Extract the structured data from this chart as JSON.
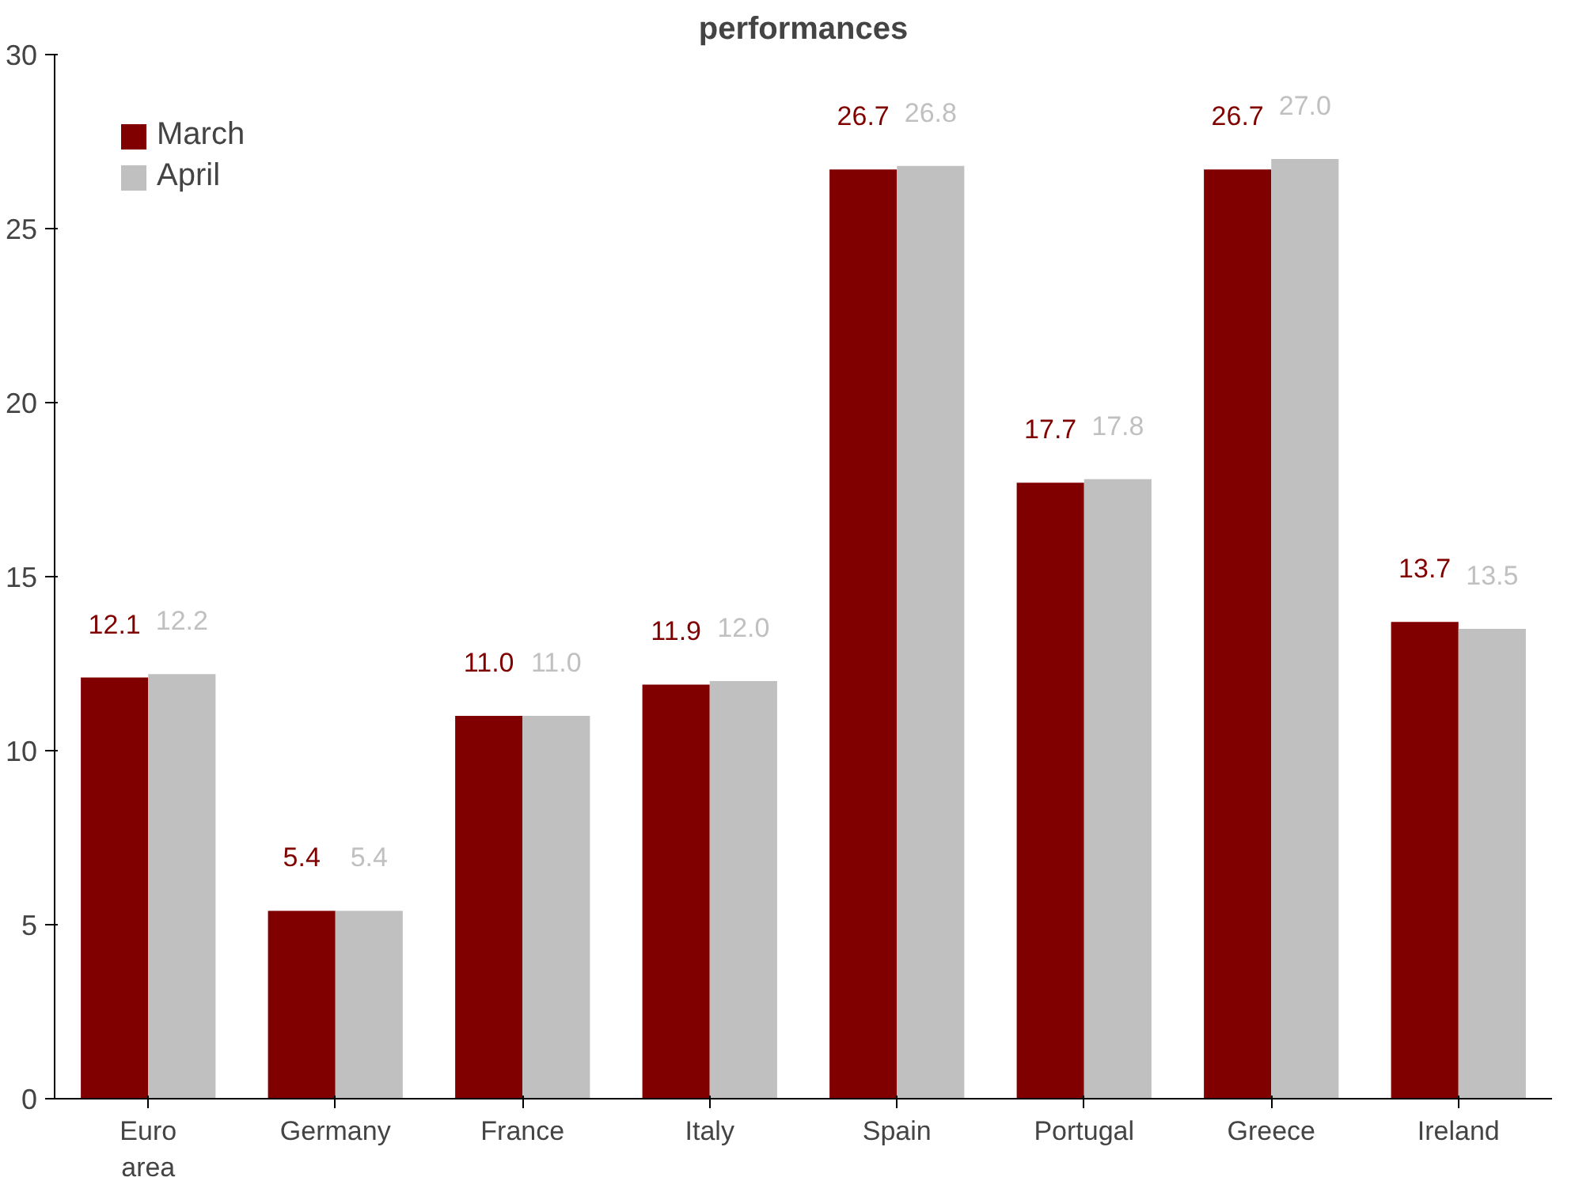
{
  "chart_data": {
    "type": "bar",
    "title": "performances",
    "categories": [
      "Euro area",
      "Germany",
      "France",
      "Italy",
      "Spain",
      "Portugal",
      "Greece",
      "Ireland"
    ],
    "series": [
      {
        "name": "March",
        "color": "#800000",
        "values": [
          12.1,
          5.4,
          11.0,
          11.9,
          26.7,
          17.7,
          26.7,
          13.7
        ],
        "value_labels": [
          "12.1",
          "5.4",
          "11.0",
          "11.9",
          "26.7",
          "17.7",
          "26.7",
          "13.7"
        ]
      },
      {
        "name": "April",
        "color": "#c0c0c0",
        "values": [
          12.2,
          5.4,
          11.0,
          12.0,
          26.8,
          17.8,
          27.0,
          13.5
        ],
        "value_labels": [
          "12.2",
          "5.4",
          "11.0",
          "12.0",
          "26.8",
          "17.8",
          "27.0",
          "13.5"
        ]
      }
    ],
    "ylim": [
      0,
      30
    ],
    "yticks": [
      0,
      5,
      10,
      15,
      20,
      25,
      30
    ],
    "grid": false,
    "legend": "top left"
  }
}
